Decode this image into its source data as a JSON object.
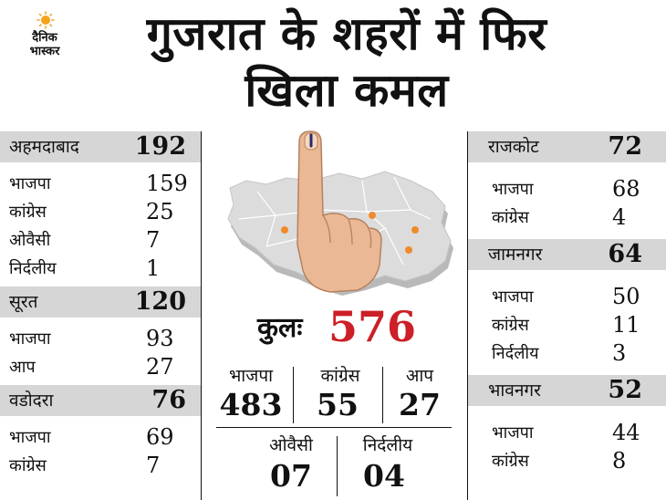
{
  "brand": {
    "line1": "दैनिक",
    "line2": "भास्कर"
  },
  "headline": {
    "line1": "गुजरात के शहरों में फिर",
    "line2": "खिला कमल"
  },
  "cities_left": [
    {
      "name": "अहमदाबाद",
      "total": "192",
      "rows": [
        {
          "party": "भाजपा",
          "seats": "159"
        },
        {
          "party": "कांग्रेस",
          "seats": "25"
        },
        {
          "party": "ओवैसी",
          "seats": "7"
        },
        {
          "party": "निर्दलीय",
          "seats": "1"
        }
      ]
    },
    {
      "name": "सूरत",
      "total": "120",
      "rows": [
        {
          "party": "भाजपा",
          "seats": "93"
        },
        {
          "party": "आप",
          "seats": "27"
        }
      ]
    },
    {
      "name": "वडोदरा",
      "total": "76",
      "rows": [
        {
          "party": "भाजपा",
          "seats": "69"
        },
        {
          "party": "कांग्रेस",
          "seats": "7"
        }
      ]
    }
  ],
  "cities_right": [
    {
      "name": "राजकोट",
      "total": "72",
      "rows": [
        {
          "party": "भाजपा",
          "seats": "68"
        },
        {
          "party": "कांग्रेस",
          "seats": "4"
        }
      ]
    },
    {
      "name": "जामनगर",
      "total": "64",
      "rows": [
        {
          "party": "भाजपा",
          "seats": "50"
        },
        {
          "party": "कांग्रेस",
          "seats": "11"
        },
        {
          "party": "निर्दलीय",
          "seats": "3"
        }
      ]
    },
    {
      "name": "भावनगर",
      "total": "52",
      "rows": [
        {
          "party": "भाजपा",
          "seats": "44"
        },
        {
          "party": "कांग्रेस",
          "seats": "8"
        }
      ]
    }
  ],
  "total": {
    "label": "कुलः",
    "value": "576"
  },
  "party_totals_top": [
    {
      "party": "भाजपा",
      "seats": "483"
    },
    {
      "party": "कांग्रेस",
      "seats": "55"
    },
    {
      "party": "आप",
      "seats": "27"
    }
  ],
  "party_totals_bottom": [
    {
      "party": "ओवैसी",
      "seats": "07"
    },
    {
      "party": "निर्दलीय",
      "seats": "04"
    }
  ],
  "colors": {
    "accent": "#cc1f27",
    "panel": "#d6d6d6",
    "map": "#d9d9d9",
    "dot": "#f08a2a",
    "sun": "#f5a21b"
  },
  "icons": [
    "sun-logo-icon",
    "gujarat-map-illustration",
    "inked-finger-icon",
    "city-marker-icon"
  ]
}
